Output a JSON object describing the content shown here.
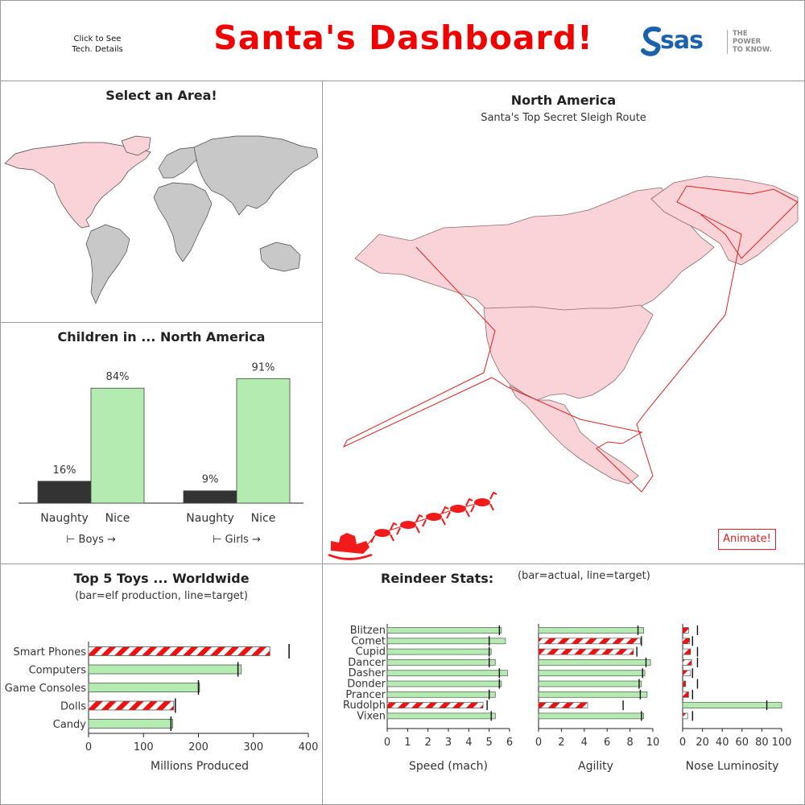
{
  "header": {
    "tech_link": "Click to See\nTech. Details",
    "title": "Santa's Dashboard!",
    "logo_text": "sas",
    "logo_tagline": [
      "THE",
      "POWER",
      "TO KNOW."
    ],
    "title_color": "#f20000",
    "logo_color": "#1b62ad"
  },
  "world_panel": {
    "title": "Select an Area!",
    "selected_region": "North America",
    "selected_color": "#f9d3d7",
    "other_color": "#c8c8c8"
  },
  "region_panel": {
    "title": "North America",
    "subtitle": "Santa's Top Secret Sleigh Route",
    "animate_label": "Animate!",
    "route_color": "#e02020",
    "sleigh_icon": "sleigh-reindeer-icon"
  },
  "children_chart": {
    "type": "bar",
    "title": "Children in ... North America",
    "groups": [
      {
        "label": "Boys",
        "bars": [
          {
            "category": "Naughty",
            "value": 16,
            "label": "16%"
          },
          {
            "category": "Nice",
            "value": 84,
            "label": "84%"
          }
        ]
      },
      {
        "label": "Girls",
        "bars": [
          {
            "category": "Naughty",
            "value": 9,
            "label": "9%"
          },
          {
            "category": "Nice",
            "value": 91,
            "label": "91%"
          }
        ]
      }
    ],
    "colors": {
      "Naughty": "#333333",
      "Nice": "#b3ebb0"
    }
  },
  "toys_chart": {
    "type": "bar",
    "orientation": "horizontal",
    "title": "Top 5 Toys ... Worldwide",
    "subtitle": "(bar=elf production, line=target)",
    "xlabel": "Millions Produced",
    "xlim": [
      0,
      400
    ],
    "xticks": [
      "0",
      "100",
      "200",
      "300",
      "400"
    ],
    "items": [
      {
        "category": "Smart Phones",
        "value": 330,
        "target": 365,
        "below_target": true
      },
      {
        "category": "Computers",
        "value": 278,
        "target": 272,
        "below_target": false
      },
      {
        "category": "Game Consoles",
        "value": 202,
        "target": 200,
        "below_target": false
      },
      {
        "category": "Dolls",
        "value": 155,
        "target": 158,
        "below_target": true
      },
      {
        "category": "Candy",
        "value": 153,
        "target": 150,
        "below_target": false
      }
    ]
  },
  "reindeer_chart": {
    "type": "bar",
    "orientation": "horizontal",
    "title": "Reindeer Stats:",
    "subtitle": "(bar=actual, line=target)",
    "categories": [
      "Blitzen",
      "Comet",
      "Cupid",
      "Dancer",
      "Dasher",
      "Donder",
      "Prancer",
      "Rudolph",
      "Vixen"
    ],
    "panels": [
      {
        "xlabel": "Speed (mach)",
        "xlim": [
          0,
          6
        ],
        "xticks": [
          "0",
          "1",
          "2",
          "3",
          "4",
          "5",
          "6"
        ],
        "values": [
          5.6,
          5.8,
          5.1,
          5.3,
          5.9,
          5.6,
          5.3,
          4.7,
          5.3
        ],
        "targets": [
          5.5,
          5.0,
          5.0,
          5.0,
          5.5,
          5.5,
          5.0,
          4.9,
          5.1
        ]
      },
      {
        "xlabel": "Agility",
        "xlim": [
          0,
          10
        ],
        "xticks": [
          "0",
          "2",
          "4",
          "6",
          "8",
          "10"
        ],
        "values": [
          9.2,
          8.9,
          8.3,
          9.8,
          9.3,
          9.0,
          9.5,
          4.3,
          9.2
        ],
        "targets": [
          8.7,
          9.0,
          8.6,
          9.4,
          9.1,
          8.8,
          8.9,
          7.4,
          9.0
        ]
      },
      {
        "xlabel": "Nose Luminosity",
        "xlim": [
          0,
          100
        ],
        "xticks": [
          "0",
          "20",
          "40",
          "60",
          "80",
          "100"
        ],
        "values": [
          6,
          7,
          8,
          9,
          8,
          3,
          6,
          100,
          5
        ],
        "targets": [
          15,
          10,
          15,
          15,
          10,
          15,
          10,
          85,
          10
        ]
      }
    ]
  },
  "colors": {
    "ok_bar": "#b3ebb0",
    "stripe_red": "#f01010",
    "target_line": "#111111"
  }
}
